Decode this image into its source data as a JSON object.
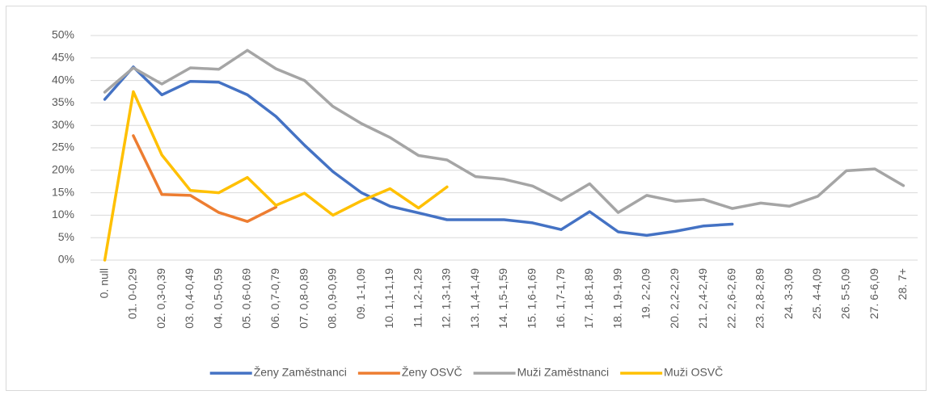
{
  "chart_data": {
    "type": "line",
    "categories": [
      "0. null",
      "01. 0-0,29",
      "02. 0,3-0,39",
      "03. 0,4-0,49",
      "04. 0,5-0,59",
      "05. 0,6-0,69",
      "06. 0,7-0,79",
      "07. 0,8-0,89",
      "08. 0,9-0,99",
      "09. 1-1,09",
      "10. 1,1-1,19",
      "11. 1,2-1,29",
      "12. 1,3-1,39",
      "13. 1,4-1,49",
      "14. 1,5-1,59",
      "15. 1,6-1,69",
      "16. 1,7-1,79",
      "17. 1,8-1,89",
      "18. 1,9-1,99",
      "19. 2-2,09",
      "20. 2,2-2,29",
      "21. 2,4-2,49",
      "22. 2,6-2,69",
      "23. 2,8-2,89",
      "24. 3-3,09",
      "25. 4-4,09",
      "26. 5-5,09",
      "27. 6-6,09",
      "28. 7+"
    ],
    "series": [
      {
        "name": "Ženy Zaměstnanci",
        "color": "#4472c4",
        "values": [
          35.8,
          43,
          36.8,
          39.8,
          39.6,
          36.8,
          32,
          25.6,
          19.7,
          15,
          12,
          10.5,
          9,
          9,
          9,
          8.3,
          6.8,
          10.8,
          6.3,
          5.5,
          6.4,
          7.6,
          8,
          null,
          null,
          null,
          null,
          null,
          null
        ]
      },
      {
        "name": "Ženy OSVČ",
        "color": "#ed7d31",
        "values": [
          null,
          27.7,
          14.6,
          14.4,
          10.6,
          8.6,
          11.8,
          null,
          null,
          null,
          null,
          null,
          null,
          null,
          null,
          null,
          null,
          null,
          null,
          null,
          null,
          null,
          null,
          null,
          null,
          null,
          null,
          null,
          null
        ]
      },
      {
        "name": "Muži Zaměstnanci",
        "color": "#a5a5a5",
        "values": [
          37.4,
          42.8,
          39.2,
          42.8,
          42.5,
          46.7,
          42.6,
          40,
          34.2,
          30.4,
          27.3,
          23.3,
          22.3,
          18.6,
          18,
          16.5,
          13.3,
          17,
          10.6,
          14.4,
          13.1,
          13.5,
          11.5,
          12.7,
          12,
          14.2,
          19.9,
          20.3,
          16.6
        ]
      },
      {
        "name": "Muži OSVČ",
        "color": "#ffc000",
        "values": [
          0,
          37.5,
          23.4,
          15.5,
          15,
          18.4,
          12.2,
          14.9,
          10,
          13.2,
          15.9,
          11.6,
          16.3,
          null,
          null,
          null,
          null,
          null,
          null,
          null,
          null,
          null,
          null,
          null,
          null,
          null,
          null,
          null,
          null
        ]
      }
    ],
    "ylim": [
      0,
      50
    ],
    "yticks": [
      {
        "value": 0,
        "label": "0%"
      },
      {
        "value": 5,
        "label": "5%"
      },
      {
        "value": 10,
        "label": "10%"
      },
      {
        "value": 15,
        "label": "15%"
      },
      {
        "value": 20,
        "label": "20%"
      },
      {
        "value": 25,
        "label": "25%"
      },
      {
        "value": 30,
        "label": "30%"
      },
      {
        "value": 35,
        "label": "35%"
      },
      {
        "value": 40,
        "label": "40%"
      },
      {
        "value": 45,
        "label": "45%"
      },
      {
        "value": 50,
        "label": "50%"
      }
    ],
    "grid": true,
    "legend": "bottom"
  }
}
